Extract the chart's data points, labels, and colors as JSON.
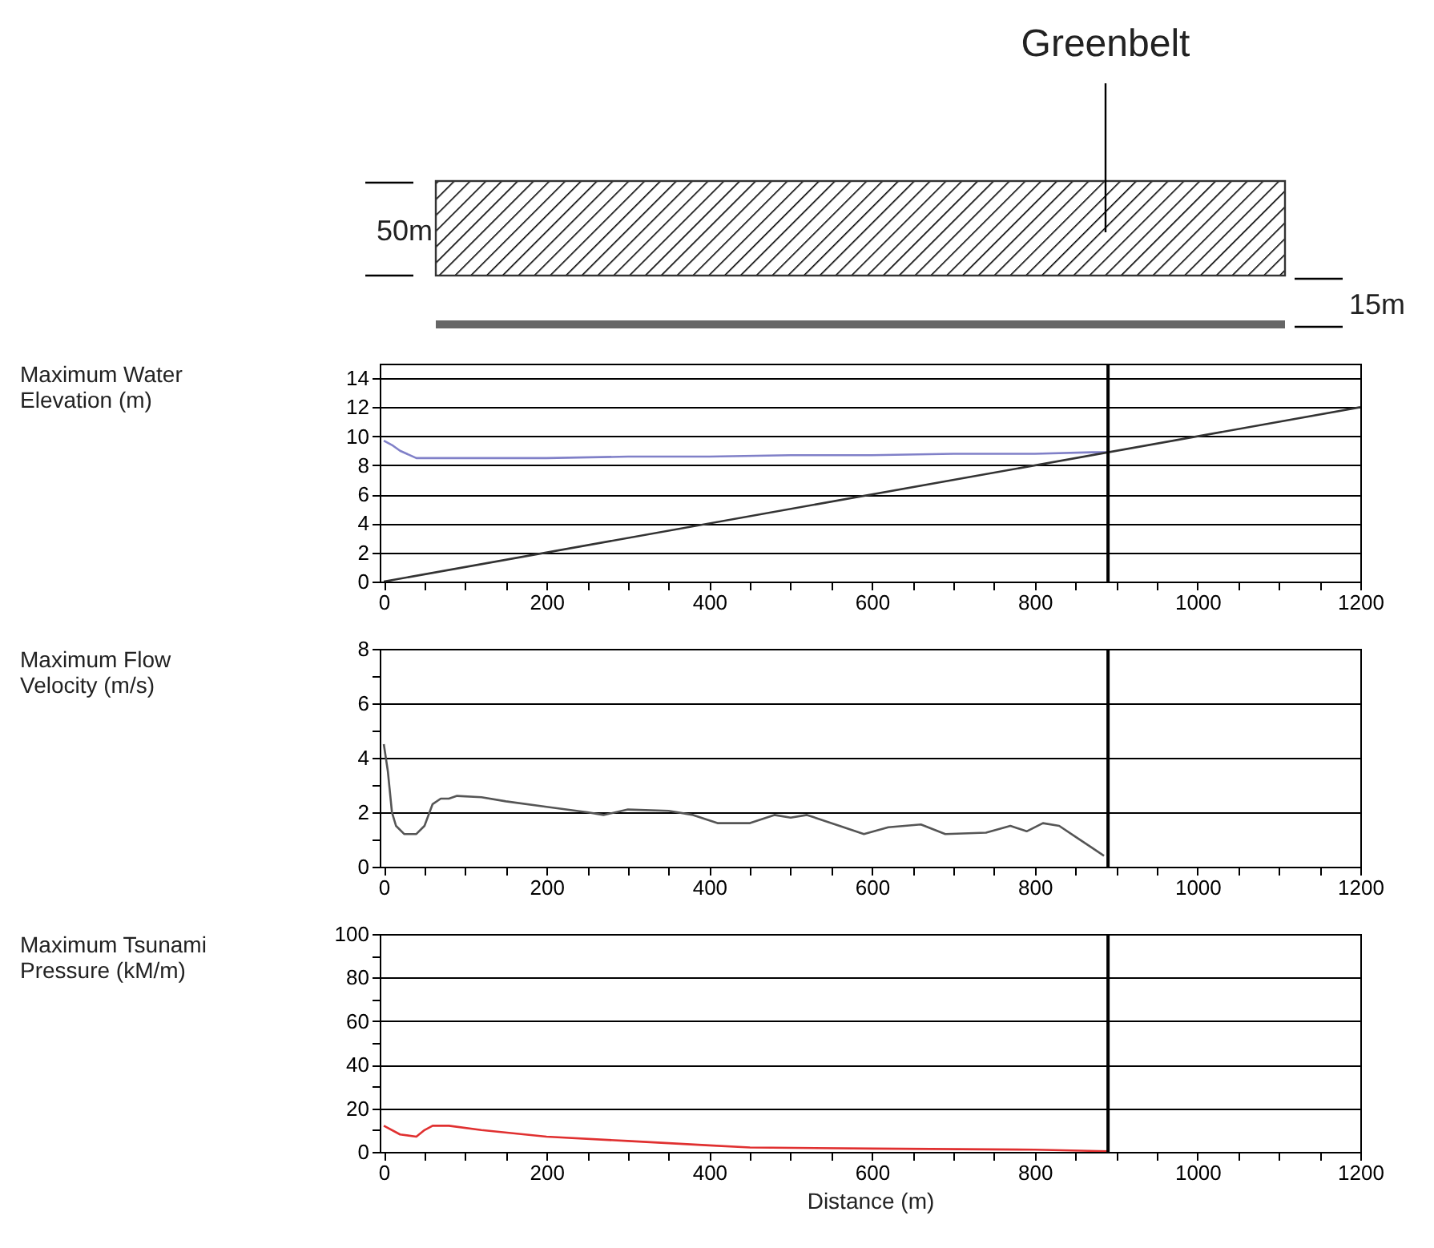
{
  "chart_data": [
    {
      "type": "line",
      "ylabel": "Maximum Water Elevation (m)",
      "annotations": [
        "Greenbelt",
        "50m",
        "15m"
      ],
      "series": [
        {
          "color": "#8080c8",
          "x": [
            0,
            10,
            20,
            40,
            60,
            100,
            200,
            300,
            400,
            500,
            600,
            700,
            800,
            870,
            890
          ],
          "values": [
            9.7,
            9.4,
            9.0,
            8.5,
            8.5,
            8.5,
            8.5,
            8.6,
            8.6,
            8.7,
            8.7,
            8.8,
            8.8,
            8.9,
            8.9
          ]
        },
        {
          "color": "#333333",
          "x": [
            0,
            1200
          ],
          "values": [
            0,
            12
          ]
        }
      ],
      "xlim": [
        -5,
        1200
      ],
      "xticks": [
        0,
        {
          "value": 50,
          "label": null
        },
        {
          "value": 100,
          "label": null
        },
        {
          "value": 150,
          "label": null
        },
        200,
        {
          "value": 250,
          "label": null
        },
        {
          "value": 300,
          "label": null
        },
        {
          "value": 350,
          "label": null
        },
        400,
        {
          "value": 450,
          "label": null
        },
        {
          "value": 500,
          "label": null
        },
        {
          "value": 550,
          "label": null
        },
        600,
        {
          "value": 650,
          "label": null
        },
        {
          "value": 700,
          "label": null
        },
        {
          "value": 750,
          "label": null
        },
        800,
        {
          "value": 850,
          "label": null
        },
        {
          "value": 900,
          "label": null
        },
        {
          "value": 950,
          "label": null
        },
        1000,
        {
          "value": 1050,
          "label": null
        },
        {
          "value": 1100,
          "label": null
        },
        {
          "value": 1150,
          "label": null
        },
        1200
      ],
      "ylim": [
        0,
        15
      ],
      "yticks": [
        0,
        2,
        4,
        6,
        8,
        10,
        12,
        14
      ],
      "grid": "y",
      "ref_lines": [
        {
          "axis": "x",
          "value": 890,
          "color": "#000000"
        }
      ]
    },
    {
      "type": "line",
      "ylabel": "Maximum Flow Velocity (m/s)",
      "series": [
        {
          "color": "#555555",
          "x": [
            0,
            5,
            10,
            15,
            25,
            40,
            50,
            60,
            70,
            80,
            90,
            120,
            150,
            200,
            250,
            270,
            300,
            350,
            380,
            410,
            450,
            480,
            500,
            520,
            560,
            590,
            620,
            660,
            690,
            740,
            770,
            790,
            810,
            830,
            850,
            870,
            885
          ],
          "values": [
            4.5,
            3.5,
            2.0,
            1.5,
            1.2,
            1.2,
            1.5,
            2.3,
            2.5,
            2.5,
            2.6,
            2.55,
            2.4,
            2.2,
            2.0,
            1.9,
            2.1,
            2.05,
            1.9,
            1.6,
            1.6,
            1.9,
            1.8,
            1.9,
            1.5,
            1.2,
            1.45,
            1.55,
            1.2,
            1.25,
            1.5,
            1.3,
            1.6,
            1.5,
            1.1,
            0.7,
            0.4
          ]
        }
      ],
      "xlim": [
        -5,
        1200
      ],
      "xticks": [
        0,
        {
          "value": 50,
          "label": null
        },
        {
          "value": 100,
          "label": null
        },
        {
          "value": 150,
          "label": null
        },
        200,
        {
          "value": 250,
          "label": null
        },
        {
          "value": 300,
          "label": null
        },
        {
          "value": 350,
          "label": null
        },
        400,
        {
          "value": 450,
          "label": null
        },
        {
          "value": 500,
          "label": null
        },
        {
          "value": 550,
          "label": null
        },
        600,
        {
          "value": 650,
          "label": null
        },
        {
          "value": 700,
          "label": null
        },
        {
          "value": 750,
          "label": null
        },
        800,
        {
          "value": 850,
          "label": null
        },
        {
          "value": 900,
          "label": null
        },
        {
          "value": 950,
          "label": null
        },
        1000,
        {
          "value": 1050,
          "label": null
        },
        {
          "value": 1100,
          "label": null
        },
        {
          "value": 1150,
          "label": null
        },
        1200
      ],
      "ylim": [
        0,
        8
      ],
      "yticks": [
        0,
        {
          "value": 1,
          "label": null
        },
        2,
        {
          "value": 3,
          "label": null
        },
        4,
        {
          "value": 5,
          "label": null
        },
        6,
        {
          "value": 7,
          "label": null
        },
        8
      ],
      "grid": "y",
      "ref_lines": [
        {
          "axis": "x",
          "value": 890,
          "color": "#000000"
        }
      ]
    },
    {
      "type": "line",
      "ylabel": "Maximum Tsunami Pressure (kM/m)",
      "xlabel": "Distance (m)",
      "series": [
        {
          "color": "#e03030",
          "x": [
            0,
            20,
            40,
            50,
            60,
            80,
            120,
            200,
            300,
            400,
            450,
            600,
            800,
            890
          ],
          "values": [
            12,
            8,
            7,
            10,
            12,
            12,
            10,
            7,
            5,
            3,
            2,
            1.5,
            1,
            0.3
          ]
        }
      ],
      "xlim": [
        -5,
        1200
      ],
      "xticks": [
        0,
        {
          "value": 50,
          "label": null
        },
        {
          "value": 100,
          "label": null
        },
        {
          "value": 150,
          "label": null
        },
        200,
        {
          "value": 250,
          "label": null
        },
        {
          "value": 300,
          "label": null
        },
        {
          "value": 350,
          "label": null
        },
        400,
        {
          "value": 450,
          "label": null
        },
        {
          "value": 500,
          "label": null
        },
        {
          "value": 550,
          "label": null
        },
        600,
        {
          "value": 650,
          "label": null
        },
        {
          "value": 700,
          "label": null
        },
        {
          "value": 750,
          "label": null
        },
        800,
        {
          "value": 850,
          "label": null
        },
        {
          "value": 900,
          "label": null
        },
        {
          "value": 950,
          "label": null
        },
        1000,
        {
          "value": 1050,
          "label": null
        },
        {
          "value": 1100,
          "label": null
        },
        {
          "value": 1150,
          "label": null
        },
        1200
      ],
      "ylim": [
        0,
        100
      ],
      "yticks": [
        0,
        {
          "value": 10,
          "label": null
        },
        20,
        {
          "value": 30,
          "label": null
        },
        40,
        {
          "value": 50,
          "label": null
        },
        60,
        {
          "value": 70,
          "label": null
        },
        80,
        {
          "value": 90,
          "label": null
        },
        100
      ],
      "grid": "y",
      "ref_lines": [
        {
          "axis": "x",
          "value": 890,
          "color": "#000000"
        }
      ]
    }
  ]
}
